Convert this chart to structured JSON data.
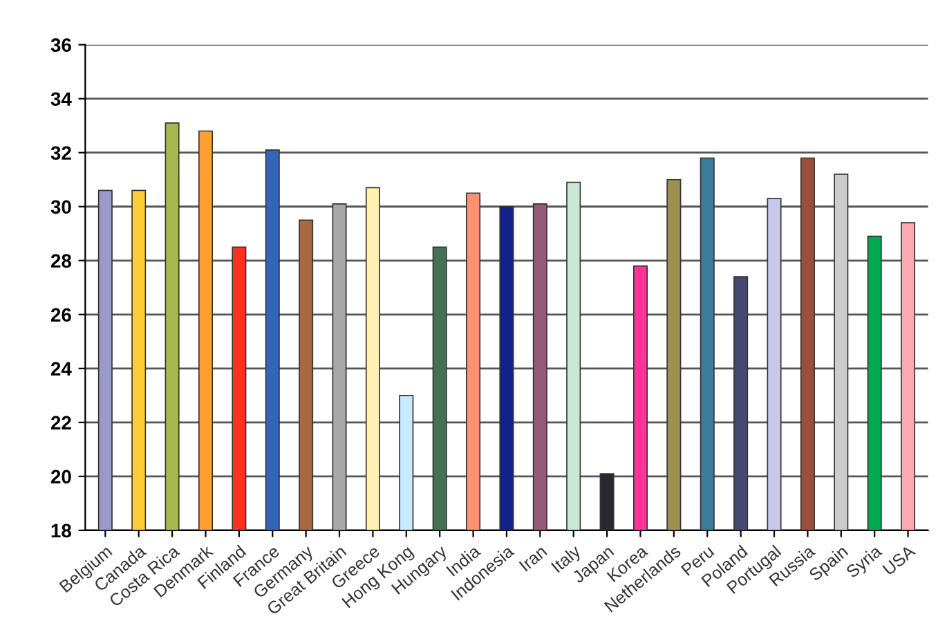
{
  "chart_data": {
    "type": "bar",
    "categories": [
      "Belgium",
      "Canada",
      "Costa Rica",
      "Denmark",
      "Finland",
      "France",
      "Germany",
      "Great Britain",
      "Greece",
      "Hong Kong",
      "Hungary",
      "India",
      "Indonesia",
      "Iran",
      "Italy",
      "Japan",
      "Korea",
      "Netherlands",
      "Peru",
      "Poland",
      "Portugal",
      "Russia",
      "Spain",
      "Syria",
      "USA"
    ],
    "values": [
      30.6,
      30.6,
      33.1,
      32.8,
      28.5,
      32.1,
      29.5,
      30.1,
      30.7,
      23.0,
      28.5,
      30.5,
      30.0,
      30.1,
      30.9,
      20.1,
      27.8,
      31.0,
      31.8,
      27.4,
      30.3,
      31.8,
      31.2,
      28.9,
      29.4
    ],
    "colors": [
      "#9999cc",
      "#ffcc33",
      "#a8b850",
      "#ffa030",
      "#ff3020",
      "#3366bb",
      "#a86840",
      "#a8a8a8",
      "#fff2b0",
      "#c8eaff",
      "#447055",
      "#ff9070",
      "#122288",
      "#945a78",
      "#c8e8d8",
      "#282a30",
      "#ff3399",
      "#9e9050",
      "#3a7d9a",
      "#464870",
      "#c8c8e8",
      "#9a5038",
      "#cccccc",
      "#00a850",
      "#ffaab0"
    ],
    "ylim": [
      18,
      36
    ],
    "yticks": [
      18,
      20,
      22,
      24,
      26,
      28,
      30,
      32,
      34,
      36
    ],
    "grid": "y"
  }
}
